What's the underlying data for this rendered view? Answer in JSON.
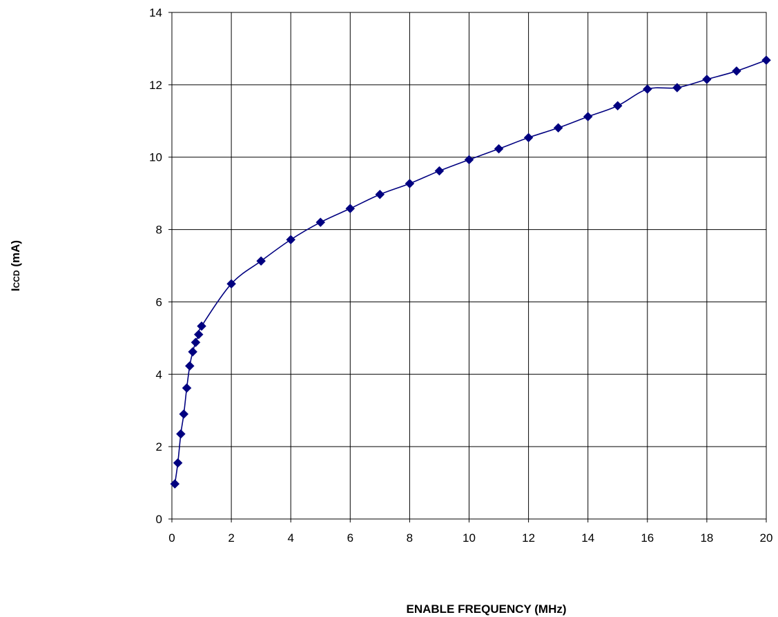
{
  "chart_data": {
    "type": "line",
    "title": "",
    "xlabel": "ENABLE FREQUENCY (MHz)",
    "ylabel": {
      "main": "I",
      "subscript": "CCD",
      "suffix": " (mA)"
    },
    "xlim": [
      0,
      20
    ],
    "ylim": [
      0,
      14
    ],
    "x_ticks": [
      0,
      2,
      4,
      6,
      8,
      10,
      12,
      14,
      16,
      18,
      20
    ],
    "y_ticks": [
      0,
      2,
      4,
      6,
      8,
      10,
      12,
      14
    ],
    "grid": true,
    "legend": "none",
    "series": [
      {
        "color": "#000080",
        "marker": "diamond",
        "x": [
          0.1,
          0.2,
          0.3,
          0.4,
          0.5,
          0.6,
          0.7,
          0.8,
          0.9,
          1,
          2,
          3,
          4,
          5,
          6,
          7,
          8,
          9,
          10,
          11,
          12,
          13,
          14,
          15,
          16,
          17,
          18,
          19,
          20
        ],
        "y": [
          0.97,
          1.55,
          2.35,
          2.9,
          3.62,
          4.23,
          4.62,
          4.88,
          5.1,
          5.33,
          6.5,
          7.13,
          7.72,
          8.2,
          8.58,
          8.97,
          9.27,
          9.62,
          9.93,
          10.23,
          10.54,
          10.81,
          11.12,
          11.42,
          11.88,
          11.92,
          12.15,
          12.38,
          12.68
        ]
      }
    ]
  }
}
